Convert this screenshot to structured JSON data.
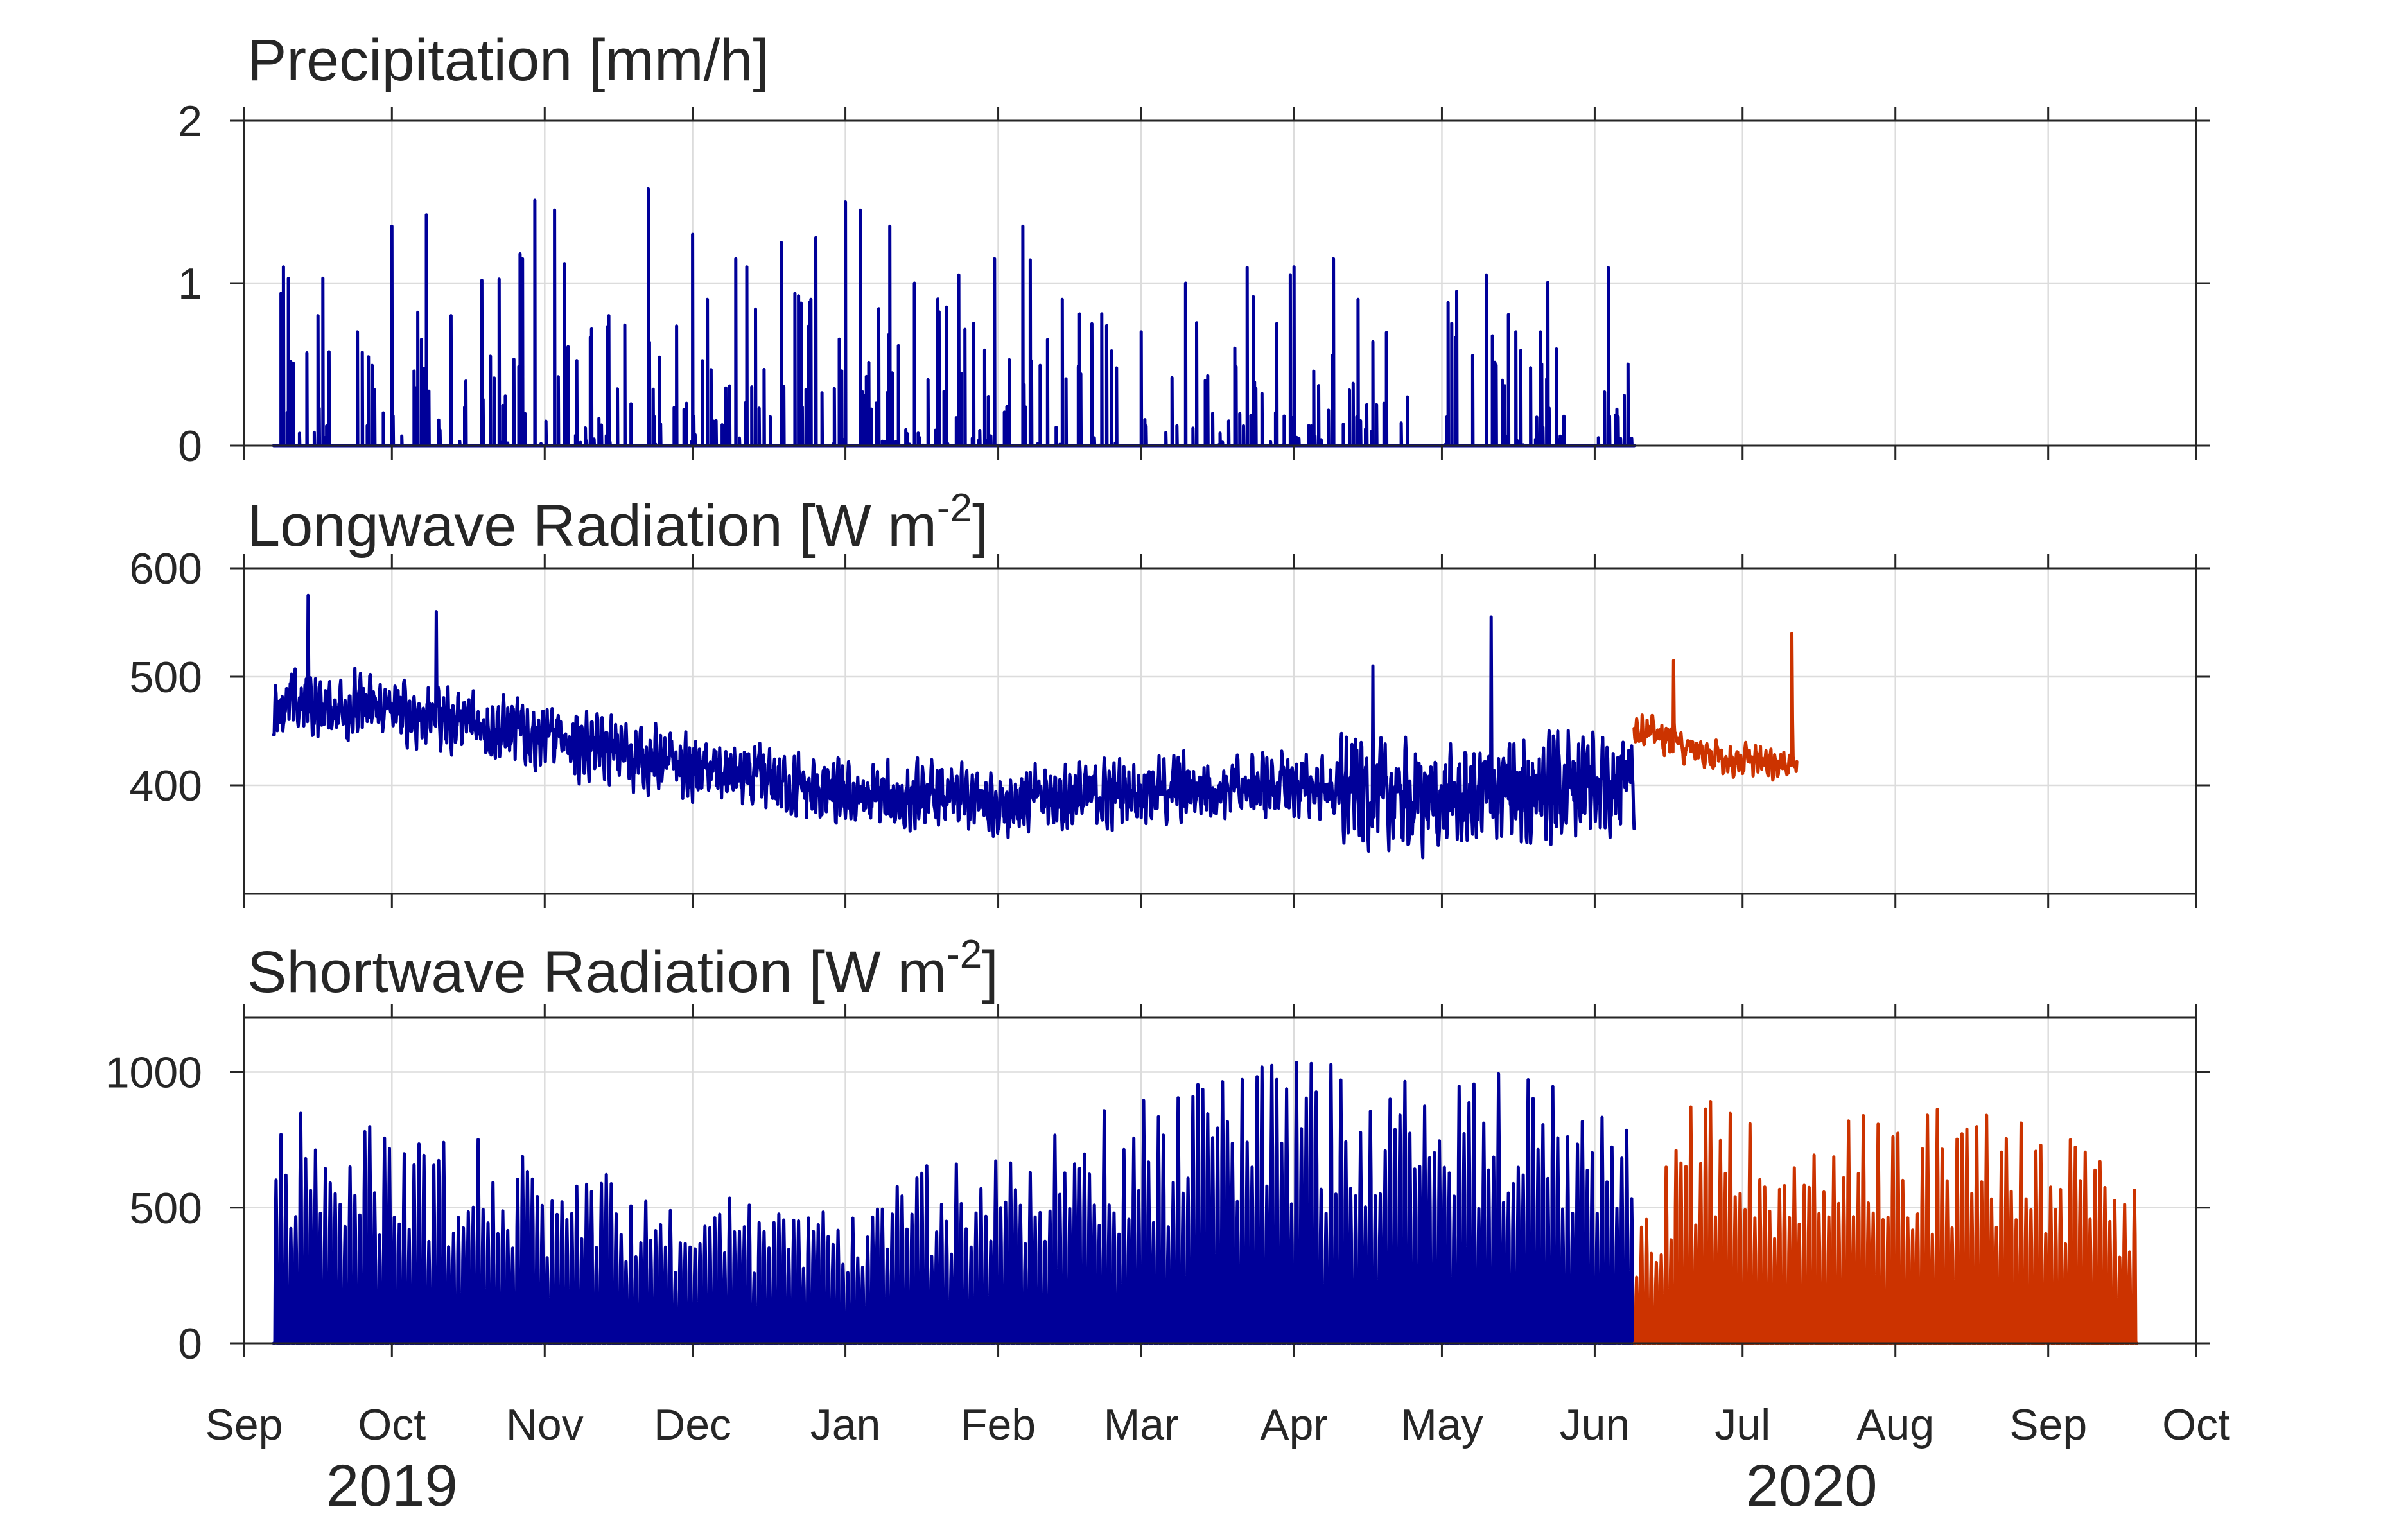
{
  "chart_data": [
    {
      "type": "line",
      "title": "Precipitation [mm/h]",
      "x_range": [
        "2019-09-01",
        "2020-10-01"
      ],
      "ylim": [
        0,
        2
      ],
      "yticks": [
        "0",
        "1",
        "2"
      ],
      "grid": true,
      "series": [
        {
          "color": "#000099",
          "period": [
            "2019-09-07",
            "2020-06-09"
          ],
          "min": 0,
          "max": 1.6,
          "peaks": [
            {
              "x": "2019-09-09",
              "y": 1.1
            },
            {
              "x": "2019-09-16",
              "y": 0.8
            },
            {
              "x": "2019-09-17",
              "y": 1.03
            },
            {
              "x": "2019-09-24",
              "y": 0.7
            },
            {
              "x": "2019-10-01",
              "y": 1.35
            },
            {
              "x": "2019-10-08",
              "y": 1.42
            },
            {
              "x": "2019-10-13",
              "y": 0.8
            },
            {
              "x": "2019-10-21",
              "y": 0.55
            },
            {
              "x": "2019-10-27",
              "y": 1.18
            },
            {
              "x": "2019-10-30",
              "y": 1.51
            },
            {
              "x": "2019-11-03",
              "y": 1.45
            },
            {
              "x": "2019-11-05",
              "y": 1.12
            },
            {
              "x": "2019-11-14",
              "y": 0.8
            },
            {
              "x": "2019-11-22",
              "y": 1.58
            },
            {
              "x": "2019-12-01",
              "y": 1.3
            },
            {
              "x": "2019-12-04",
              "y": 0.9
            },
            {
              "x": "2019-12-12",
              "y": 1.1
            },
            {
              "x": "2019-12-19",
              "y": 1.25
            },
            {
              "x": "2019-12-26",
              "y": 1.28
            },
            {
              "x": "2020-01-01",
              "y": 1.5
            },
            {
              "x": "2020-01-04",
              "y": 1.45
            },
            {
              "x": "2020-01-10",
              "y": 1.35
            },
            {
              "x": "2020-01-15",
              "y": 1.0
            },
            {
              "x": "2020-01-24",
              "y": 1.05
            },
            {
              "x": "2020-02-06",
              "y": 1.35
            },
            {
              "x": "2020-02-14",
              "y": 0.9
            },
            {
              "x": "2020-02-20",
              "y": 0.75
            },
            {
              "x": "2020-03-01",
              "y": 0.7
            },
            {
              "x": "2020-03-10",
              "y": 1.0
            },
            {
              "x": "2020-03-20",
              "y": 0.6
            },
            {
              "x": "2020-04-01",
              "y": 1.1
            },
            {
              "x": "2020-04-14",
              "y": 0.9
            },
            {
              "x": "2020-04-24",
              "y": 0.3
            },
            {
              "x": "2020-05-04",
              "y": 0.95
            },
            {
              "x": "2020-05-10",
              "y": 1.05
            },
            {
              "x": "2020-05-16",
              "y": 0.7
            },
            {
              "x": "2020-05-21",
              "y": 0.7
            },
            {
              "x": "2020-06-03",
              "y": 0.33
            },
            {
              "x": "2020-06-07",
              "y": 0.31
            }
          ]
        }
      ]
    },
    {
      "type": "line",
      "title": "Longwave Radiation [W m",
      "title_superscript": "-2",
      "title_suffix": "]",
      "x_range": [
        "2019-09-01",
        "2020-10-01"
      ],
      "ylim": [
        300,
        600
      ],
      "yticks": [
        "400",
        "500",
        "600"
      ],
      "grid": true,
      "series": [
        {
          "color": "#000099",
          "period": [
            "2019-09-07",
            "2020-06-09"
          ],
          "trend": [
            {
              "x": "2019-09-07",
              "y": 475
            },
            {
              "x": "2019-10-01",
              "y": 470
            },
            {
              "x": "2019-11-01",
              "y": 445
            },
            {
              "x": "2019-12-01",
              "y": 415
            },
            {
              "x": "2020-01-01",
              "y": 390
            },
            {
              "x": "2020-02-01",
              "y": 385
            },
            {
              "x": "2020-03-01",
              "y": 395
            },
            {
              "x": "2020-04-01",
              "y": 400
            },
            {
              "x": "2020-05-01",
              "y": 385
            },
            {
              "x": "2020-06-09",
              "y": 410
            }
          ],
          "peaks": [
            {
              "x": "2019-09-14",
              "y": 575
            },
            {
              "x": "2019-10-10",
              "y": 560
            },
            {
              "x": "2020-04-17",
              "y": 510
            },
            {
              "x": "2020-05-11",
              "y": 555
            }
          ]
        },
        {
          "color": "#cc3300",
          "period": [
            "2020-06-09",
            "2020-07-12"
          ],
          "trend": [
            {
              "x": "2020-06-09",
              "y": 455
            },
            {
              "x": "2020-06-25",
              "y": 425
            },
            {
              "x": "2020-07-12",
              "y": 420
            }
          ],
          "peaks": [
            {
              "x": "2020-06-17",
              "y": 515
            },
            {
              "x": "2020-07-11",
              "y": 540
            }
          ]
        }
      ]
    },
    {
      "type": "line",
      "title": "Shortwave Radiation [W m",
      "title_superscript": "-2",
      "title_suffix": "]",
      "x_range": [
        "2019-09-01",
        "2020-10-01"
      ],
      "ylim": [
        0,
        1200
      ],
      "yticks": [
        "0",
        "500",
        "1000"
      ],
      "grid": true,
      "series": [
        {
          "color": "#000099",
          "period": [
            "2019-09-07",
            "2020-06-09"
          ],
          "daily_max": [
            {
              "x": "2019-09-07",
              "y": 860
            },
            {
              "x": "2019-10-01",
              "y": 820
            },
            {
              "x": "2019-11-01",
              "y": 700
            },
            {
              "x": "2019-12-01",
              "y": 540
            },
            {
              "x": "2020-01-01",
              "y": 560
            },
            {
              "x": "2020-02-01",
              "y": 760
            },
            {
              "x": "2020-03-01",
              "y": 900
            },
            {
              "x": "2020-04-01",
              "y": 1050
            },
            {
              "x": "2020-05-01",
              "y": 1060
            },
            {
              "x": "2020-06-09",
              "y": 900
            }
          ]
        },
        {
          "color": "#cc3300",
          "period": [
            "2020-06-09",
            "2020-09-19"
          ],
          "daily_max": [
            {
              "x": "2020-06-09",
              "y": 450
            },
            {
              "x": "2020-06-20",
              "y": 930
            },
            {
              "x": "2020-07-15",
              "y": 780
            },
            {
              "x": "2020-08-01",
              "y": 900
            },
            {
              "x": "2020-09-01",
              "y": 830
            },
            {
              "x": "2020-09-19",
              "y": 600
            }
          ]
        }
      ]
    }
  ],
  "x_axis": {
    "months": [
      {
        "label": "Sep",
        "date": "2019-09-01"
      },
      {
        "label": "Oct",
        "date": "2019-10-01"
      },
      {
        "label": "Nov",
        "date": "2019-11-01"
      },
      {
        "label": "Dec",
        "date": "2019-12-01"
      },
      {
        "label": "Jan",
        "date": "2020-01-01"
      },
      {
        "label": "Feb",
        "date": "2020-02-01"
      },
      {
        "label": "Mar",
        "date": "2020-03-01"
      },
      {
        "label": "Apr",
        "date": "2020-04-01"
      },
      {
        "label": "May",
        "date": "2020-05-01"
      },
      {
        "label": "Jun",
        "date": "2020-06-01"
      },
      {
        "label": "Jul",
        "date": "2020-07-01"
      },
      {
        "label": "Aug",
        "date": "2020-08-01"
      },
      {
        "label": "Sep",
        "date": "2020-09-01"
      },
      {
        "label": "Oct",
        "date": "2020-10-01"
      }
    ],
    "years": [
      {
        "label": "2019",
        "date": "2019-10-01"
      },
      {
        "label": "2020",
        "date": "2020-07-15"
      }
    ]
  }
}
